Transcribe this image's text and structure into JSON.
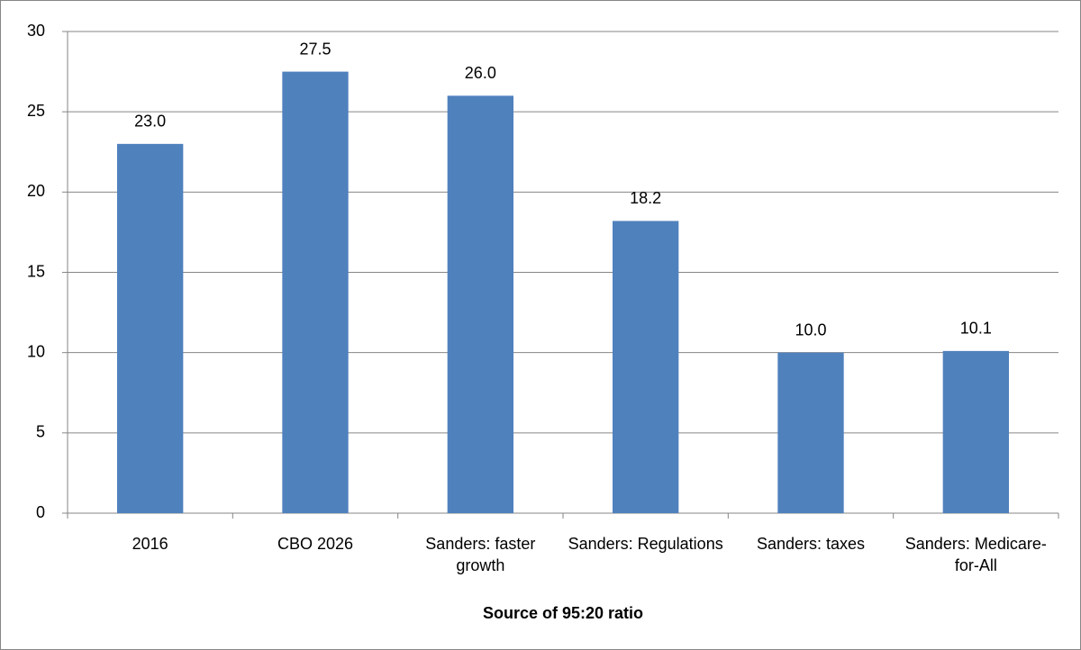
{
  "chart_data": {
    "type": "bar",
    "x_label": "Source of 95:20 ratio",
    "categories": [
      "2016",
      "CBO 2026",
      "Sanders: faster growth",
      "Sanders: Regulations",
      "Sanders: taxes",
      "Sanders: Medicare-for-All"
    ],
    "values": [
      23,
      27.5,
      26,
      18.2,
      10,
      10.1
    ],
    "value_labels": [
      "23.0",
      "27.5",
      "26.0",
      "18.2",
      "10.0",
      "10.1"
    ],
    "color": "#4f81bd",
    "ylim": [
      0,
      30
    ],
    "yticks": [
      0,
      5,
      10,
      15,
      20,
      25,
      30
    ],
    "grid": true
  }
}
